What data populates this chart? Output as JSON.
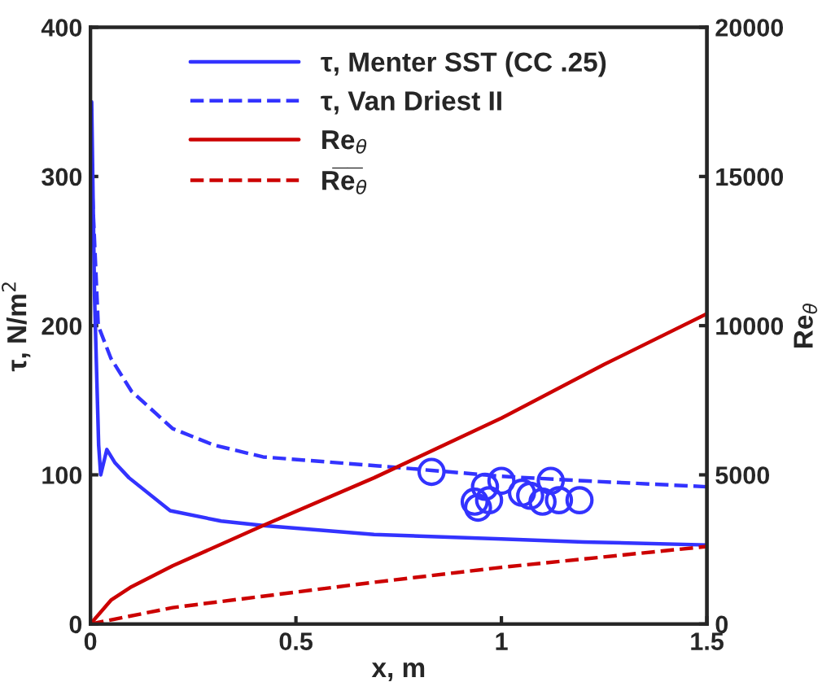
{
  "chart_data": {
    "type": "line",
    "xlabel": "x, m",
    "ylabel": "τ, N/m$^{2}$",
    "y2label": "Re$_{θ}$",
    "xlim": [
      0,
      1.5
    ],
    "xticks": [
      0,
      0.5,
      1,
      1.5
    ],
    "ylim": [
      0,
      400
    ],
    "yticks": [
      0,
      100,
      200,
      300,
      400
    ],
    "y2lim": [
      0,
      20000
    ],
    "y2ticks": [
      0,
      5000,
      10000,
      15000,
      20000
    ],
    "legend": "top",
    "grid": false,
    "series": [
      {
        "type": "scatter",
        "marker": "circle",
        "color": "#3333ff",
        "x": [
          0.83,
          0.935,
          0.943,
          0.96,
          0.97,
          1.0,
          1.05,
          1.07,
          1.1,
          1.12,
          1.14,
          1.19
        ],
        "values": [
          102,
          82,
          78,
          92,
          83,
          96,
          88,
          86,
          82,
          96,
          83,
          83
        ]
      },
      {
        "name": "τ, Menter SST (CC .25)",
        "color": "#3333ff",
        "line_style": "solid",
        "x": [
          0.003,
          0.01,
          0.02,
          0.025,
          0.04,
          0.06,
          0.094,
          0.194,
          0.318,
          0.42,
          0.69,
          1.0,
          1.2,
          1.5
        ],
        "values": [
          350,
          220,
          120,
          100,
          117,
          108,
          98,
          76,
          69,
          66,
          60,
          57,
          55,
          53
        ]
      },
      {
        "name": "τ, Van Driest II",
        "color": "#3333ff",
        "line_style": "dashed",
        "x": [
          0.003,
          0.019,
          0.05,
          0.1,
          0.2,
          0.3,
          0.42,
          0.7,
          0.83,
          1.0,
          1.2,
          1.5
        ],
        "values": [
          300,
          200,
          178,
          156,
          131,
          120,
          112,
          106,
          103,
          99,
          96,
          92
        ]
      },
      {
        "name": "Re$_{θ}$",
        "color": "#cc0000",
        "line_style": "solid",
        "axis": "y2",
        "x": [
          0,
          0.05,
          0.1,
          0.2,
          0.42,
          0.69,
          1.0,
          1.25,
          1.5
        ],
        "values": [
          0,
          800,
          1250,
          1950,
          3300,
          4900,
          6900,
          8700,
          10400
        ]
      },
      {
        "name": "R̅e̅$_{θ}$",
        "color": "#cc0000",
        "line_style": "dashed",
        "axis": "y2",
        "x": [
          0,
          0.2,
          0.69,
          1.0,
          1.5
        ],
        "values": [
          0,
          550,
          1400,
          1900,
          2600
        ]
      }
    ]
  }
}
